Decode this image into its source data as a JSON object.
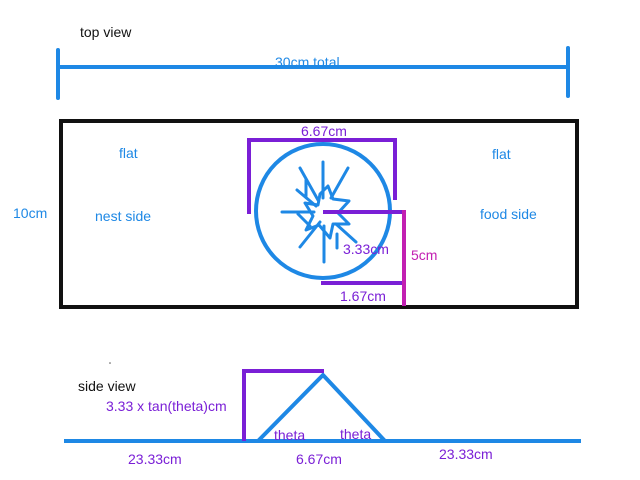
{
  "colors": {
    "blue": "#1e88e5",
    "purple": "#7a1fd6",
    "magenta": "#c21fb2",
    "black": "#111111"
  },
  "top_view": {
    "title": "top view",
    "total_label": "30cm total",
    "height_label": "10cm",
    "left_flat_label": "flat",
    "right_flat_label": "flat",
    "nest_label": "nest side",
    "food_label": "food side",
    "dome_width_label": "6.67cm",
    "radius_label": "3.33cm",
    "half_height_label": "5cm",
    "offset_label": "1.67cm"
  },
  "side_view": {
    "title": "side view",
    "height_label": "3.33 x tan(theta)cm",
    "left_angle_label": "theta",
    "right_angle_label": "theta",
    "left_length_label": "23.33cm",
    "middle_length_label": "6.67cm",
    "right_length_label": "23.33cm"
  }
}
